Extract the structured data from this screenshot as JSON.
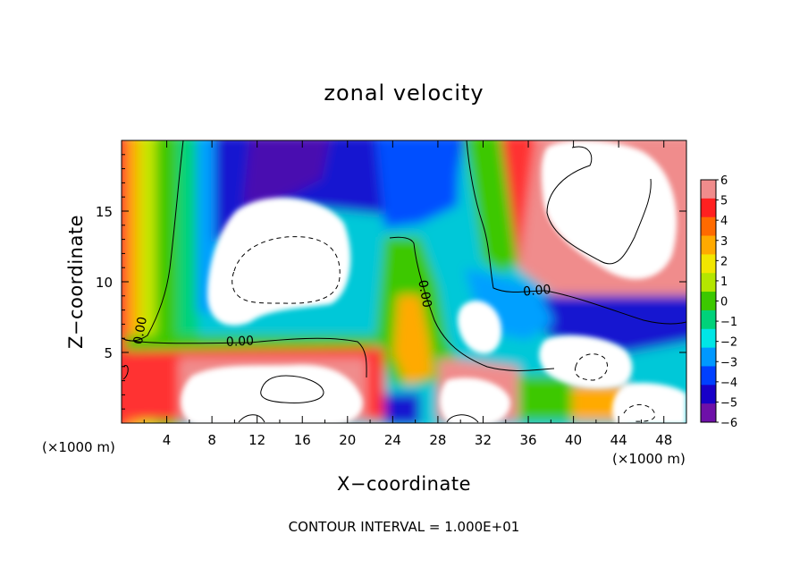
{
  "chart_data": {
    "type": "heatmap",
    "title": "zonal velocity",
    "xlabel": "X−coordinate",
    "ylabel": "Z−coordinate",
    "x_unit_left": "(×1000 m)",
    "x_unit_right": "(×1000 m)",
    "x_ticks": [
      4,
      8,
      12,
      16,
      20,
      24,
      28,
      32,
      36,
      40,
      44,
      48
    ],
    "y_ticks": [
      5,
      10,
      15
    ],
    "xlim": [
      0,
      50
    ],
    "ylim": [
      0,
      20
    ],
    "footer": "CONTOUR INTERVAL = 1.000E+01",
    "contour_labels": [
      {
        "text": "0.00",
        "x": 2.0,
        "y": 6.5,
        "rotate": -80
      },
      {
        "text": "0.00",
        "x": 10.5,
        "y": 5.5,
        "rotate": -3
      },
      {
        "text": "0.00",
        "x": 26.5,
        "y": 9.1,
        "rotate": 80
      },
      {
        "text": "0.00",
        "x": 36.8,
        "y": 9.1,
        "rotate": -5
      }
    ],
    "colorbar": {
      "values": [
        6,
        5,
        4,
        3,
        2,
        1,
        0,
        -1,
        -2,
        -3,
        -4,
        -5,
        -6
      ],
      "labels": [
        "6",
        "5",
        "4",
        "3",
        "2",
        "1",
        "0",
        "−1",
        "−2",
        "−3",
        "−4",
        "−5",
        "−6"
      ],
      "colors": [
        "#f08c8c",
        "#ff2020",
        "#ff6a00",
        "#ffaa00",
        "#f2e600",
        "#b4e600",
        "#3cc800",
        "#00d27a",
        "#00e6e6",
        "#0098ff",
        "#0040ff",
        "#1800c8",
        "#6e10a8"
      ]
    }
  }
}
